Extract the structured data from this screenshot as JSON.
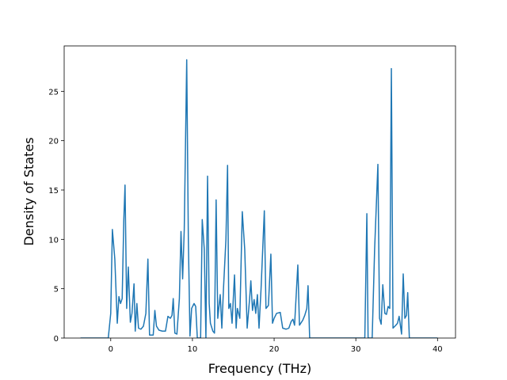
{
  "chart_data": {
    "type": "line",
    "x_label": "Frequency (THz)",
    "y_label": "Density of States",
    "xlim": [
      -5.7,
      42.2
    ],
    "ylim": [
      0,
      29.6
    ],
    "xticks": [
      0,
      10,
      20,
      30,
      40
    ],
    "yticks": [
      0,
      5,
      10,
      15,
      20,
      25
    ],
    "x": [
      -3.7,
      -0.3,
      0,
      0.2,
      0.5,
      0.8,
      1.0,
      1.2,
      1.4,
      1.6,
      1.75,
      1.95,
      2.15,
      2.4,
      2.6,
      2.85,
      3.0,
      3.2,
      3.4,
      3.7,
      4.0,
      4.3,
      4.55,
      4.75,
      5.2,
      5.4,
      5.6,
      5.9,
      6.3,
      6.7,
      7.0,
      7.3,
      7.5,
      7.65,
      7.85,
      8.1,
      8.4,
      8.6,
      8.8,
      9.0,
      9.3,
      9.5,
      9.7,
      9.9,
      10.2,
      10.4,
      10.6,
      11.0,
      11.2,
      11.45,
      11.65,
      11.85,
      12.05,
      12.2,
      12.5,
      12.7,
      12.9,
      13.1,
      13.4,
      13.6,
      13.8,
      14.1,
      14.3,
      14.45,
      14.65,
      14.85,
      15.15,
      15.35,
      15.5,
      15.8,
      16.1,
      16.4,
      16.7,
      17.0,
      17.15,
      17.35,
      17.55,
      17.75,
      17.95,
      18.15,
      18.4,
      18.8,
      19.0,
      19.3,
      19.6,
      19.8,
      20.0,
      20.3,
      20.75,
      21.05,
      21.45,
      21.8,
      22.1,
      22.3,
      22.5,
      22.9,
      23.1,
      23.5,
      23.75,
      24.0,
      24.15,
      24.35,
      30.85,
      31.1,
      31.35,
      31.5,
      32.0,
      32.3,
      32.7,
      32.9,
      33.1,
      33.3,
      33.55,
      33.75,
      33.95,
      34.15,
      34.35,
      34.55,
      34.9,
      35.1,
      35.3,
      35.6,
      35.8,
      36.0,
      36.2,
      36.35,
      36.55,
      40.0
    ],
    "series": [
      {
        "color": "#1f77b4",
        "values": [
          0,
          0,
          2.5,
          11,
          8,
          1.5,
          4.2,
          3.5,
          4,
          12,
          15.5,
          3,
          7.2,
          1.6,
          2.5,
          5.5,
          0.7,
          3.5,
          1,
          0.9,
          1.2,
          2.5,
          8,
          0.3,
          0.3,
          2.8,
          1.2,
          0.8,
          0.7,
          0.7,
          2.2,
          2,
          2.3,
          4,
          0.5,
          0.4,
          4,
          10.8,
          6,
          11,
          28.2,
          10,
          0.2,
          3,
          3.5,
          3.2,
          0,
          0,
          12,
          9,
          0,
          16.4,
          3.5,
          1.5,
          0.7,
          0.5,
          14,
          2,
          4.4,
          1,
          5,
          10,
          17.5,
          3,
          3.5,
          1.5,
          6.4,
          1,
          3,
          2,
          12.8,
          9,
          1,
          4,
          5.8,
          2.8,
          3.9,
          2.5,
          4.4,
          1,
          5,
          12.9,
          3,
          3.3,
          8.5,
          1.5,
          2,
          2.5,
          2.6,
          1,
          0.9,
          1,
          1.7,
          1.9,
          1.3,
          7.4,
          1.3,
          1.8,
          2.3,
          3,
          5.3,
          0,
          0,
          0,
          12.6,
          0,
          0,
          9,
          17.6,
          2,
          1.4,
          5.4,
          2.5,
          2.4,
          3.2,
          3,
          27.3,
          1,
          1.3,
          1.5,
          2.2,
          0.4,
          6.5,
          2,
          2.3,
          4.6,
          0,
          0
        ]
      }
    ]
  }
}
